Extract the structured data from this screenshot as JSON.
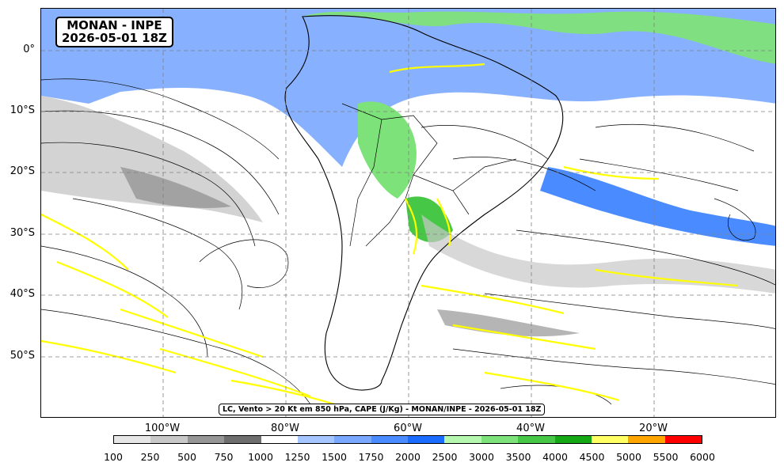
{
  "title": {
    "line1": "MONAN - INPE",
    "line2": "2026-05-01 18Z"
  },
  "caption": "LC, Vento > 20 Kt em 850 hPa, CAPE (J/Kg) - MONAN/INPE - 2026-05-01 18Z",
  "axes": {
    "lat_labels": [
      "0°",
      "10°S",
      "20°S",
      "30°S",
      "40°S",
      "50°S"
    ],
    "lon_labels": [
      "100°W",
      "80°W",
      "60°W",
      "40°W",
      "20°W"
    ],
    "lat_values": [
      0,
      -10,
      -20,
      -30,
      -40,
      -50
    ],
    "lon_values": [
      -100,
      -80,
      -60,
      -40,
      -20
    ],
    "lat_range": [
      -60,
      7
    ],
    "lon_range": [
      -120,
      0
    ],
    "grid": "dashed gray"
  },
  "colorbar": {
    "labels": [
      "100",
      "250",
      "500",
      "750",
      "1000",
      "1250",
      "1500",
      "1750",
      "2000",
      "2500",
      "3000",
      "3500",
      "4000",
      "4500",
      "5000",
      "5500",
      "6000"
    ],
    "colors": [
      "#e6e6e6",
      "#c8c8c8",
      "#969696",
      "#6e6e6e",
      "#ffffff",
      "#a6c6ff",
      "#7aa8ff",
      "#4a8cff",
      "#1a6cff",
      "#b6f7b0",
      "#7ee27a",
      "#46c846",
      "#14a814",
      "#ffff64",
      "#ffa500",
      "#ff0000",
      "#800000"
    ]
  },
  "layers": {
    "streamlines_color": "#000000",
    "wind_arrows_color": "#ffff00",
    "wind_arrows_label": "Vento > 20 Kt em 850 hPa",
    "field_label": "CAPE (J/Kg)"
  }
}
